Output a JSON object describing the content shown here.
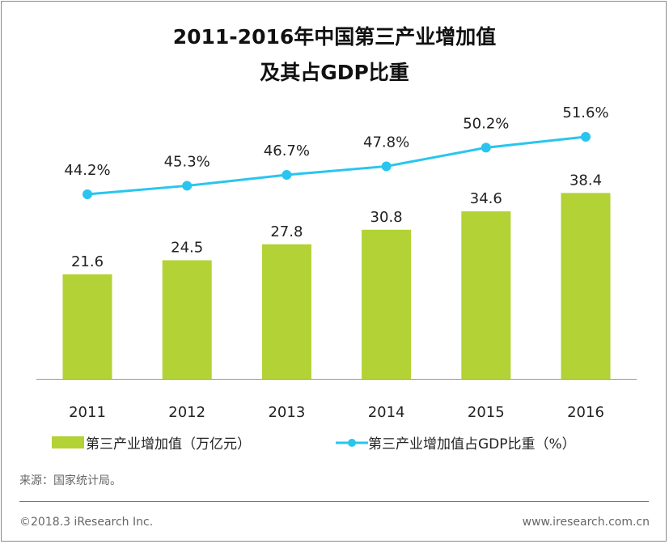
{
  "chart_data": {
    "type": "bar+line",
    "title": "2011-2016年中国第三产业增加值\n及其占GDP比重",
    "title_lines": [
      "2011-2016年中国第三产业增加值",
      "及其占GDP比重"
    ],
    "categories": [
      "2011",
      "2012",
      "2013",
      "2014",
      "2015",
      "2016"
    ],
    "series": [
      {
        "name": "第三产业增加值（万亿元）",
        "type": "bar",
        "values": [
          21.6,
          24.5,
          27.8,
          30.8,
          34.6,
          38.4
        ],
        "labels": [
          "21.6",
          "24.5",
          "27.8",
          "30.8",
          "34.6",
          "38.4"
        ],
        "color": "#b2d235"
      },
      {
        "name": "第三产业增加值占GDP比重（%）",
        "type": "line",
        "values": [
          44.2,
          45.3,
          46.7,
          47.8,
          50.2,
          51.6
        ],
        "labels": [
          "44.2%",
          "45.3%",
          "46.7%",
          "47.8%",
          "50.2%",
          "51.6%"
        ],
        "color": "#29c5ef"
      }
    ],
    "grid": false,
    "legend": "bottom"
  },
  "source": "来源：国家统计局。",
  "footer": {
    "copyright": "©2018.3 iResearch Inc.",
    "website": "www.iresearch.com.cn"
  }
}
